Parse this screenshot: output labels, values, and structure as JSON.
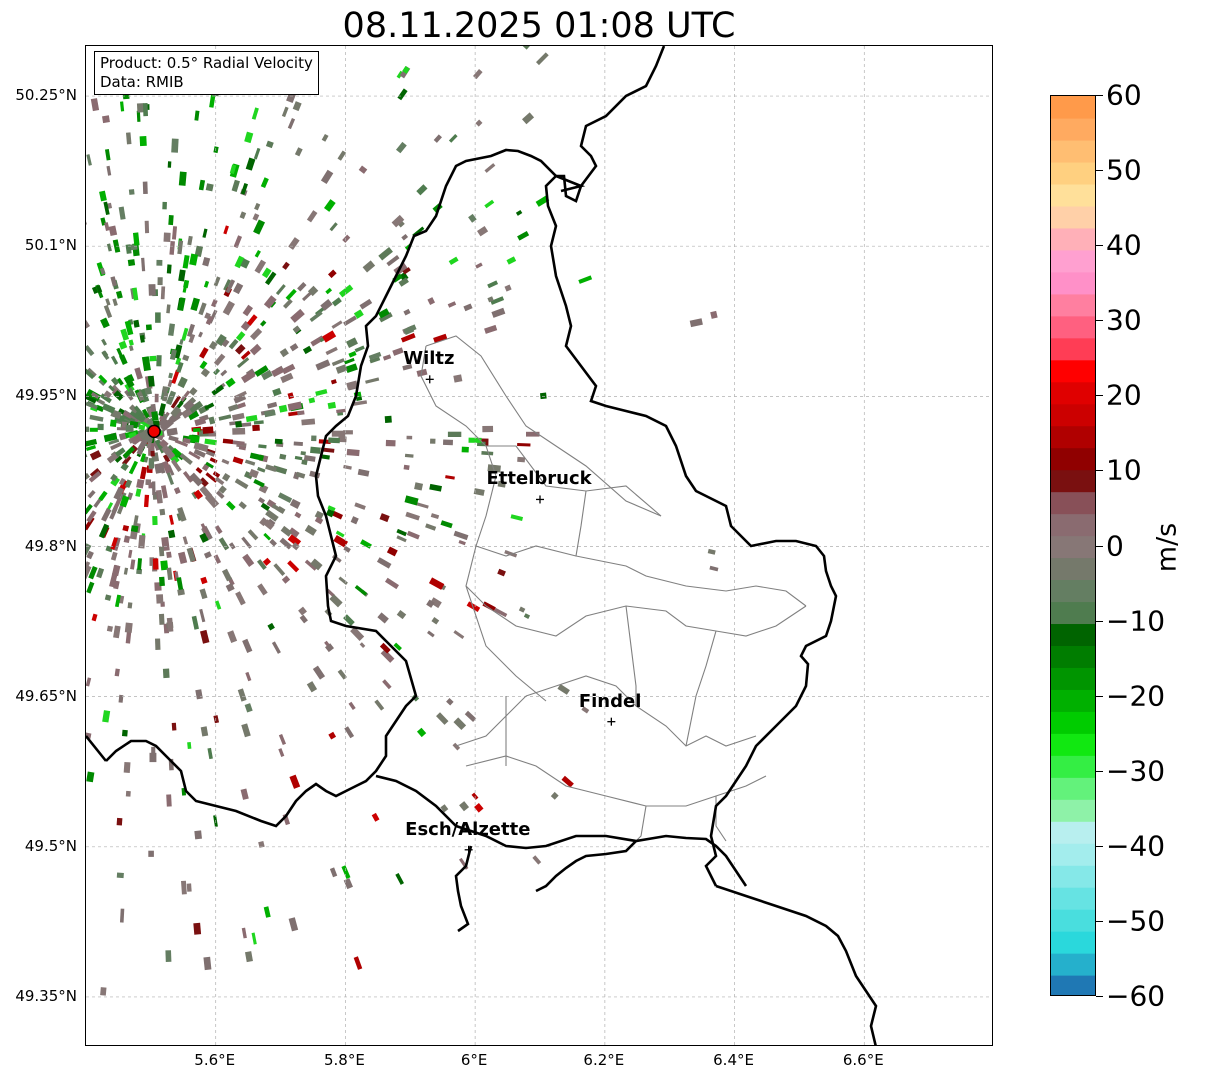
{
  "title": "08.11.2025 01:08 UTC",
  "info": {
    "product": "Product: 0.5° Radial Velocity",
    "data": "Data: RMIB"
  },
  "axes": {
    "lat_ticks": [
      "50.25°N",
      "50.1°N",
      "49.95°N",
      "49.8°N",
      "49.65°N",
      "49.5°N",
      "49.35°N"
    ],
    "lon_ticks": [
      "5.6°E",
      "5.8°E",
      "6°E",
      "6.2°E",
      "6.4°E",
      "6.6°E"
    ],
    "lat_values": [
      50.25,
      50.1,
      49.95,
      49.8,
      49.65,
      49.5,
      49.35
    ],
    "lon_values": [
      5.6,
      5.8,
      6.0,
      6.2,
      6.4,
      6.6
    ],
    "lon_range": [
      5.4,
      6.8
    ],
    "lat_range": [
      49.3,
      50.3
    ]
  },
  "cities": [
    {
      "name": "Wiltz",
      "lon": 5.93,
      "lat": 49.967
    },
    {
      "name": "Ettelbruck",
      "lon": 6.1,
      "lat": 49.847
    },
    {
      "name": "Findel",
      "lon": 6.21,
      "lat": 49.625
    },
    {
      "name": "Esch/Alzette",
      "lon": 5.99,
      "lat": 49.497
    }
  ],
  "radar_site": {
    "lon": 5.505,
    "lat": 49.915
  },
  "colorbar": {
    "label": "m/s",
    "ticks": [
      "60",
      "50",
      "40",
      "30",
      "20",
      "10",
      "0",
      "−10",
      "−20",
      "−30",
      "−40",
      "−50",
      "−60"
    ],
    "tick_values": [
      60,
      50,
      40,
      30,
      20,
      10,
      0,
      -10,
      -20,
      -30,
      -40,
      -50,
      -60
    ],
    "range": [
      -60,
      60
    ],
    "colors": [
      "#1f78b4",
      "#25b0cc",
      "#2ad8dc",
      "#49dede",
      "#66e3e3",
      "#85e8e8",
      "#a3eded",
      "#b8efef",
      "#8ef2a8",
      "#63f27b",
      "#34ee44",
      "#11e811",
      "#00cc00",
      "#00b000",
      "#009500",
      "#007d00",
      "#006400",
      "#4f7c4f",
      "#647e62",
      "#75796b",
      "#877776",
      "#8a6b70",
      "#885058",
      "#7a1010",
      "#900000",
      "#b00000",
      "#cc0000",
      "#e00000",
      "#ff0000",
      "#ff3d55",
      "#ff6080",
      "#ff7fa0",
      "#ff90c8",
      "#ffa0d0",
      "#ffb0b8",
      "#ffd0a8",
      "#ffe09a",
      "#ffd080",
      "#ffbe72",
      "#ffaa60",
      "#ff9a4a"
    ]
  }
}
